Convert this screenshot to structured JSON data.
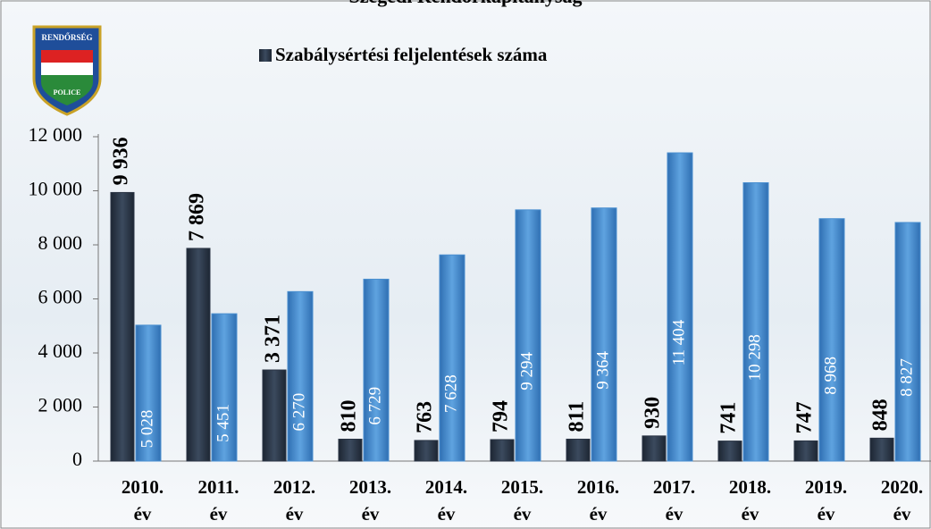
{
  "logo": {
    "top": "RENDŐRSÉG",
    "bottom": "POLICE"
  },
  "chart_data": {
    "type": "bar",
    "title": "Szegedi Rendőrkapitányság",
    "categories": [
      "2010. év",
      "2011. év",
      "2012. év",
      "2013. év",
      "2014. év",
      "2015. év",
      "2016. év",
      "2017. év",
      "2018. év",
      "2019. év",
      "2020. év"
    ],
    "series": [
      {
        "name": "Szabálysértési feljelentések száma",
        "color": "#2a3444",
        "values": [
          9936,
          7869,
          3371,
          810,
          763,
          794,
          811,
          930,
          741,
          747,
          848
        ],
        "value_labels": [
          "9 936",
          "7 869",
          "3 371",
          "810",
          "763",
          "794",
          "811",
          "930",
          "741",
          "747",
          "848"
        ]
      },
      {
        "color": "#4a8fd0",
        "values": [
          5028,
          5451,
          6270,
          6729,
          7628,
          9294,
          9364,
          11404,
          10298,
          8968,
          8827
        ],
        "value_labels": [
          "5 028",
          "5 451",
          "6 270",
          "6 729",
          "7 628",
          "9 294",
          "9 364",
          "11 404",
          "10 298",
          "8 968",
          "8 827"
        ]
      }
    ],
    "ylim": [
      0,
      12000
    ],
    "yticks": [
      0,
      {
        "value": 2000,
        "label": "2 000"
      },
      {
        "value": 4000,
        "label": "4 000"
      },
      {
        "value": 6000,
        "label": "6 000"
      },
      {
        "value": 8000,
        "label": "8 000"
      },
      {
        "value": 10000,
        "label": "10 000"
      },
      {
        "value": 12000,
        "label": "12 000"
      }
    ]
  }
}
